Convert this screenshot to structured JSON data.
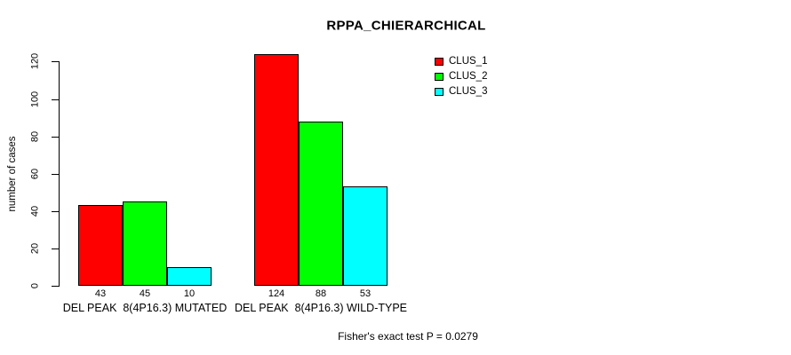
{
  "title": "RPPA_CHIERARCHICAL",
  "y_axis": {
    "label": "number of cases",
    "tick_labels": [
      "0",
      "20",
      "40",
      "60",
      "80",
      "100",
      "120"
    ]
  },
  "footer": "Fisher's exact test P = 0.0279",
  "legend": {
    "items": [
      {
        "label": "CLUS_1",
        "color": "#ff0000"
      },
      {
        "label": "CLUS_2",
        "color": "#00ff00"
      },
      {
        "label": "CLUS_3",
        "color": "#00ffff"
      }
    ]
  },
  "chart_data": {
    "type": "bar",
    "title": "RPPA_CHIERARCHICAL",
    "xlabel": "",
    "ylabel": "number of cases",
    "categories": [
      "DEL PEAK  8(4P16.3) MUTATED",
      "DEL PEAK  8(4P16.3) WILD-TYPE"
    ],
    "series": [
      {
        "name": "CLUS_1",
        "color": "#ff0000",
        "values": [
          43,
          124
        ]
      },
      {
        "name": "CLUS_2",
        "color": "#00ff00",
        "values": [
          45,
          88
        ]
      },
      {
        "name": "CLUS_3",
        "color": "#00ffff",
        "values": [
          10,
          53
        ]
      }
    ],
    "bar_value_labels": [
      [
        43,
        45,
        10
      ],
      [
        124,
        88,
        53
      ]
    ],
    "yticks": [
      0,
      20,
      40,
      60,
      80,
      100,
      120
    ],
    "ylim": [
      0,
      130
    ],
    "grid": false,
    "legend_position": "top-right",
    "annotation": "Fisher's exact test P = 0.0279"
  }
}
